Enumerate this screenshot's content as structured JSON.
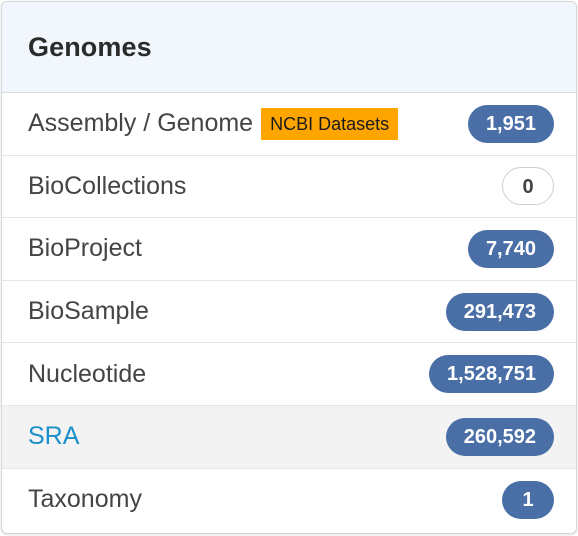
{
  "panel": {
    "title": "Genomes",
    "items": [
      {
        "label": "Assembly / Genome",
        "tag": "NCBI Datasets",
        "count": "1,951"
      },
      {
        "label": "BioCollections",
        "count": "0"
      },
      {
        "label": "BioProject",
        "count": "7,740"
      },
      {
        "label": "BioSample",
        "count": "291,473"
      },
      {
        "label": "Nucleotide",
        "count": "1,528,751"
      },
      {
        "label": "SRA",
        "count": "260,592"
      },
      {
        "label": "Taxonomy",
        "count": "1"
      }
    ]
  },
  "colors": {
    "header_bg": "#f1f7fd",
    "badge_bg": "#4a6fa6",
    "tag_bg": "#ffa500",
    "link_active": "#1a8fc9"
  }
}
